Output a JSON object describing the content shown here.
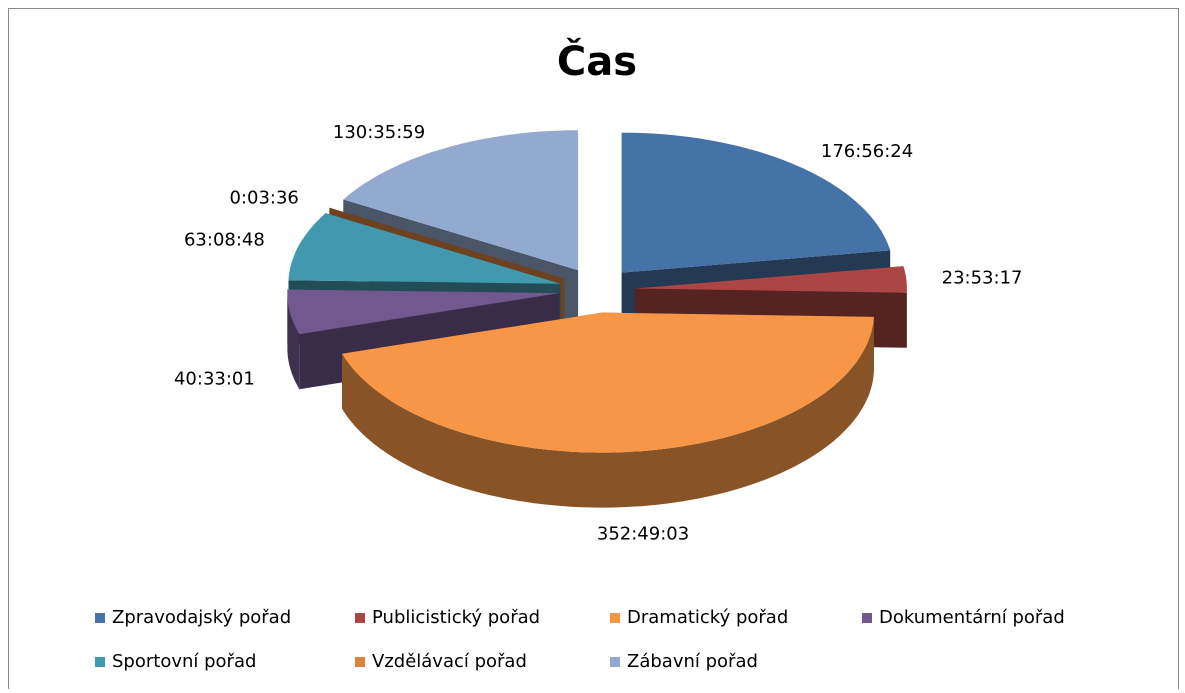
{
  "chart_data": {
    "type": "pie",
    "title": "Čas",
    "categories": [
      "Zpravodajský pořad",
      "Publicistický pořad",
      "Dramatický pořad",
      "Dokumentární pořad",
      "Sportovní pořad",
      "Vzdělávací pořad",
      "Zábavní pořad"
    ],
    "values": [
      636984,
      85997,
      1270143,
      145981,
      227328,
      216,
      470159
    ],
    "value_labels": [
      "176:56:24",
      "23:53:17",
      "352:49:03",
      "40:33:01",
      "63:08:48",
      "0:03:36",
      "130:35:59"
    ],
    "colors": [
      "#4572a7",
      "#aa4643",
      "#f79646",
      "#71588f",
      "#4198af",
      "#db843d",
      "#93a9cf"
    ],
    "legend": "bottom"
  }
}
